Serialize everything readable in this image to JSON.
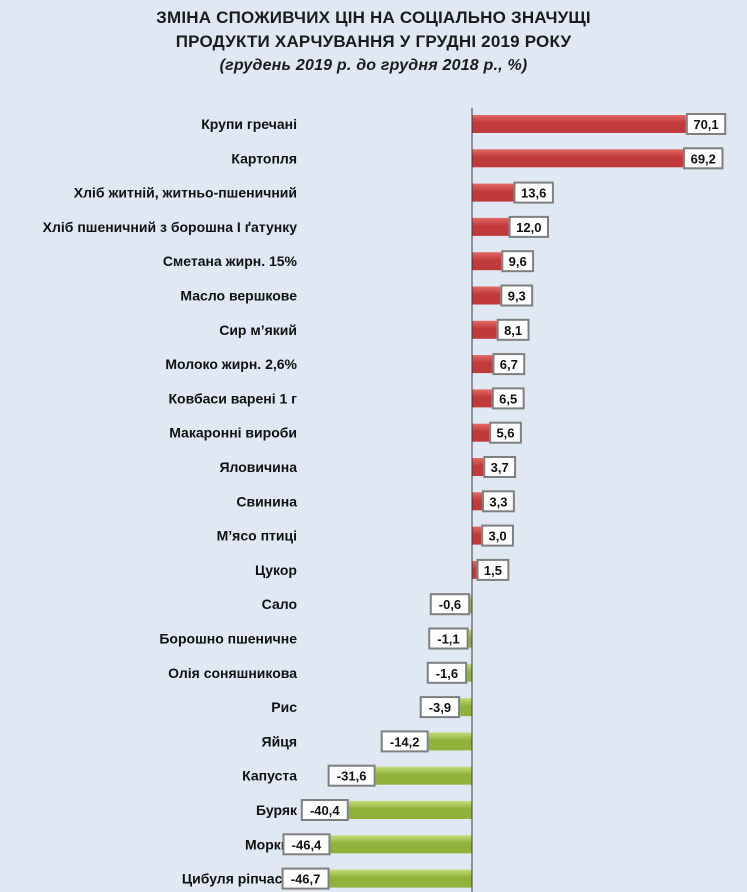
{
  "chart_data": {
    "type": "bar",
    "orientation": "horizontal",
    "title": "ЗМІНА СПОЖИВЧИХ ЦІН НА СОЦІАЛЬНО ЗНАЧУЩІ",
    "title_line2": "ПРОДУКТИ ХАРЧУВАННЯ У ГРУДНІ 2019 РОКУ",
    "subtitle": "(грудень 2019 р. до грудня  2018 р., %)",
    "categories": [
      "Крупи гречані",
      "Картопля",
      "Хліб житній, житньо-пшеничний",
      "Хліб пшеничний з борошна І ґатунку",
      "Сметана жирн. 15%",
      "Масло вершкове",
      "Сир м’який",
      "Молоко жирн. 2,6%",
      "Ковбаси варені 1 г",
      "Макаронні вироби",
      "Яловичина",
      "Свинина",
      "М’ясо птиці",
      "Цукор",
      "Сало",
      "Борошно пшеничне",
      "Олія соняшникова",
      "Рис",
      "Яйця",
      "Капуста",
      "Буряк",
      "Морква",
      "Цибуля ріпчаста"
    ],
    "values": [
      70.1,
      69.2,
      13.6,
      12.0,
      9.6,
      9.3,
      8.1,
      6.7,
      6.5,
      5.6,
      3.7,
      3.3,
      3.0,
      1.5,
      -0.6,
      -1.1,
      -1.6,
      -3.9,
      -14.2,
      -31.6,
      -40.4,
      -46.4,
      -46.7
    ],
    "value_labels": [
      "70,1",
      "69,2",
      "13,6",
      "12,0",
      "9,6",
      "9,3",
      "8,1",
      "6,7",
      "6,5",
      "5,6",
      "3,7",
      "3,3",
      "3,0",
      "1,5",
      "-0,6",
      "-1,1",
      "-1,6",
      "-3,9",
      "-14,2",
      "-31,6",
      "-40,4",
      "-46,4",
      "-46,7"
    ],
    "colors": {
      "positive": "#c0393b",
      "positive_light": "#e36a66",
      "negative": "#8fb33a",
      "negative_light": "#c2dc7a",
      "label_border": "#7f7f7f",
      "axis": "#3a3a3a"
    },
    "xlim": [
      -50,
      72
    ],
    "grid": false,
    "legend": "none"
  }
}
